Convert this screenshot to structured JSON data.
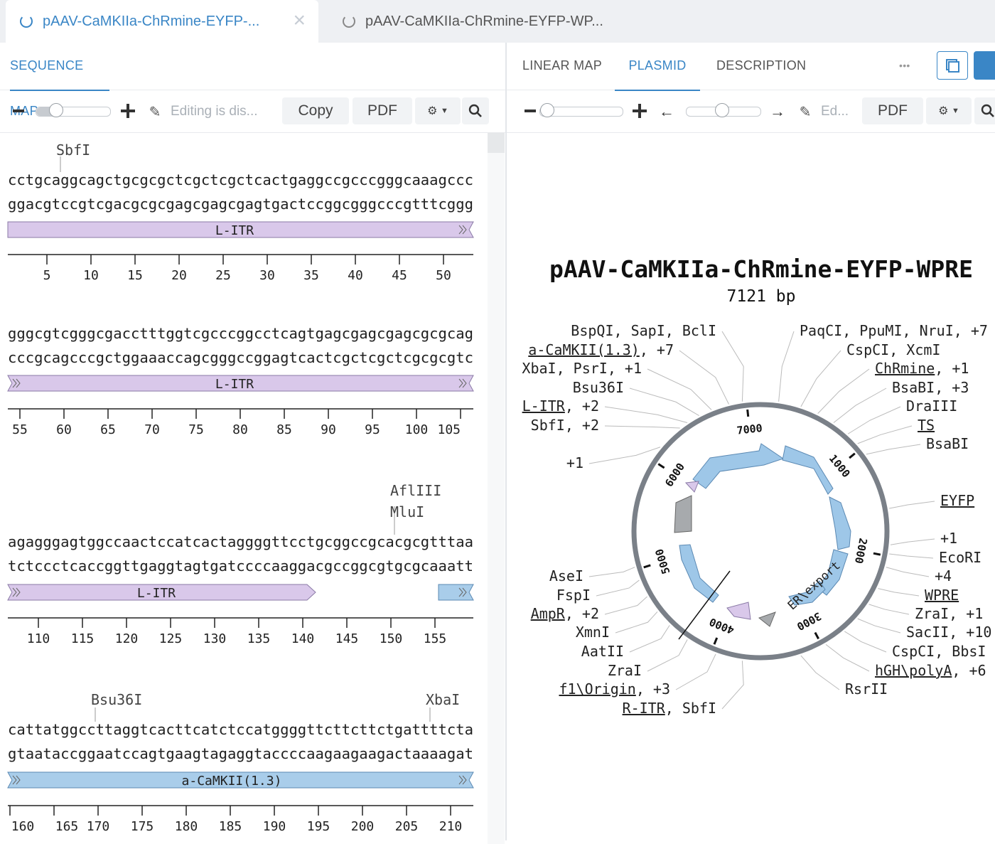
{
  "tabs": [
    {
      "label": "pAAV-CaMKIIa-ChRmine-EYFP-..."
    },
    {
      "label": "pAAV-CaMKIIa-ChRmine-EYFP-WP..."
    }
  ],
  "left": {
    "nav": {
      "sequence_map": "SEQUENCE MAP"
    },
    "toolbar": {
      "editing": "Editing is dis...",
      "copy": "Copy",
      "pdf": "PDF"
    }
  },
  "right": {
    "nav": {
      "linear_map": "LINEAR MAP",
      "plasmid": "PLASMID",
      "description": "DESCRIPTION",
      "more": "•••"
    },
    "toolbar": {
      "editing": "Ed...",
      "pdf": "PDF"
    }
  },
  "sequence_rows": [
    {
      "top": "cctgcaggcagctgcgcgctcgctcgctcactgaggccgcccgggcaaagccc",
      "bottom": "ggacgtccgtcgacgcgcgagcgagcgagtgactccggcgggcccgtttcggg",
      "sites": [
        "SbfI"
      ],
      "features": [
        {
          "label": "L-ITR"
        }
      ],
      "ticks": [
        "5",
        "10",
        "15",
        "20",
        "25",
        "30",
        "35",
        "40",
        "45",
        "50"
      ]
    },
    {
      "top": "gggcgtcgggcgacctttggtcgcccggcctcagtgagcgagcgagcgcgcag",
      "bottom": "cccgcagcccgctggaaaccagcgggccggagtcactcgctcgctcgcgcgtc",
      "sites": [],
      "features": [
        {
          "label": "L-ITR"
        }
      ],
      "ticks": [
        "55",
        "60",
        "65",
        "70",
        "75",
        "80",
        "85",
        "90",
        "95",
        "100",
        "105"
      ]
    },
    {
      "top": "agagggagtggccaactccatcactaggggttcctgcggccgcacgcgtttaa",
      "bottom": "tctccctcaccggttgaggtagtgatccccaaggacgccggcgtgcgcaaatt",
      "sites": [
        "AflIII",
        "MluI"
      ],
      "features": [
        {
          "label": "L-ITR"
        }
      ],
      "ticks": [
        "110",
        "115",
        "120",
        "125",
        "130",
        "135",
        "140",
        "145",
        "150",
        "155"
      ]
    },
    {
      "top": "cattatggccttaggtcacttcatctccatggggttcttcttctgattttcta",
      "bottom": "gtaataccggaatccagtgaagtagaggtaccccaagaagaagactaaaagat",
      "sites": [
        "Bsu36I",
        "XbaI"
      ],
      "features": [
        {
          "label": "a-CaMKII(1.3)"
        }
      ],
      "ticks": [
        "160",
        "165",
        "170",
        "175",
        "180",
        "185",
        "190",
        "195",
        "200",
        "205",
        "210"
      ]
    }
  ],
  "plasmid": {
    "name": "pAAV-CaMKIIa-ChRmine-EYFP-WPRE",
    "length": "7121 bp",
    "ticks": [
      "1000",
      "2000",
      "3000",
      "4000",
      "5000",
      "6000",
      "7000"
    ],
    "feature_label": "ER\\export",
    "labels_left": [
      {
        "name": "BspQI, SapI, BclI"
      },
      {
        "name": "a-CaMKII(1.3)",
        "extra": ", +7"
      },
      {
        "name": "XbaI, PsrI, +1"
      },
      {
        "name": "Bsu36I"
      },
      {
        "name": "L-ITR",
        "extra": ", +2"
      },
      {
        "name": "SbfI, +2"
      },
      {
        "name": "+1"
      },
      {
        "name": "AseI"
      },
      {
        "name": "FspI"
      },
      {
        "name": "AmpR",
        "extra": ", +2"
      },
      {
        "name": "XmnI"
      },
      {
        "name": "AatII"
      },
      {
        "name": "ZraI"
      },
      {
        "name": "f1\\Origin",
        "extra": ", +3"
      },
      {
        "name": "R-ITR",
        "extra": ", SbfI"
      }
    ],
    "labels_right": [
      {
        "name": "PaqCI, PpuMI, NruI, +7"
      },
      {
        "name": "CspCI, XcmI"
      },
      {
        "name": "ChRmine",
        "extra": ", +1"
      },
      {
        "name": "BsaBI, +3"
      },
      {
        "name": "DraIII"
      },
      {
        "name": "TS"
      },
      {
        "name": "BsaBI"
      },
      {
        "name": "EYFP"
      },
      {
        "name": "+1"
      },
      {
        "name": "EcoRI"
      },
      {
        "name": "+4"
      },
      {
        "name": "WPRE"
      },
      {
        "name": "ZraI, +1"
      },
      {
        "name": "SacII, +10"
      },
      {
        "name": "CspCI, BbsI"
      },
      {
        "name": "hGH\\polyA",
        "extra": ", +6"
      },
      {
        "name": "RsrII"
      }
    ]
  },
  "colors": {
    "accent": "#3a86c6",
    "itr": "#d9c8ea",
    "camkii": "#a9cdea",
    "feature_blue": "#9ec7e8"
  }
}
